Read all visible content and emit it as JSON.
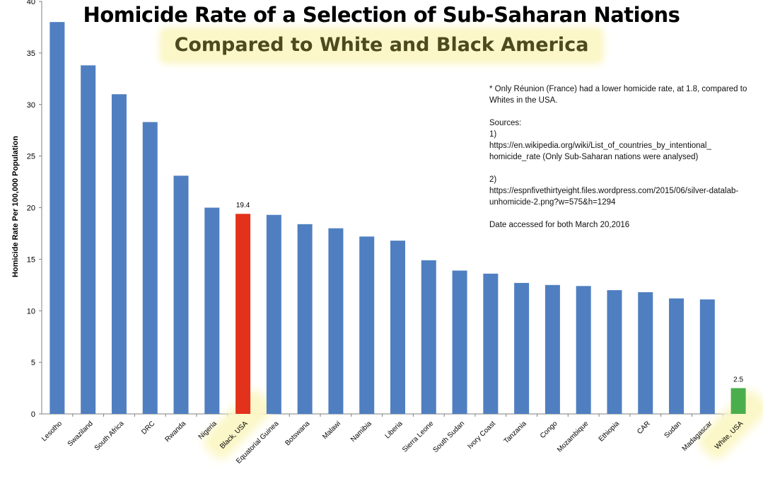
{
  "chart_data": {
    "type": "bar",
    "title": "Homicide Rate of a Selection of Sub-Saharan Nations",
    "subtitle": "Compared to White and Black America",
    "xlabel": "",
    "ylabel": "Homicide Rate Per 100,000  Population",
    "ylim": [
      0,
      40
    ],
    "yticks": [
      0,
      5,
      10,
      15,
      20,
      25,
      30,
      35,
      40
    ],
    "categories": [
      "Lesotho",
      "Swaziland",
      "South Africa",
      "DRC",
      "Rwanda",
      "Nigeria",
      "Black, USA",
      "Equatorial Guinea",
      "Botswana",
      "Malawi",
      "Namibia",
      "Liberia",
      "Sierra Leone",
      "South Sudan",
      "Ivory Coast",
      "Tanzania",
      "Congo",
      "Mozambique",
      "Ethiopia",
      "CAR",
      "Sudan",
      "Madagascar",
      "White, USA"
    ],
    "values": [
      38.0,
      33.8,
      31.0,
      28.3,
      23.1,
      20.0,
      19.4,
      19.3,
      18.4,
      18.0,
      17.2,
      16.8,
      14.9,
      13.9,
      13.6,
      12.7,
      12.5,
      12.4,
      12.0,
      11.8,
      11.2,
      11.1,
      2.5
    ],
    "data_labels": {
      "Black, USA": "19.4",
      "White, USA": "2.5"
    },
    "highlighted": [
      "Black, USA",
      "White, USA"
    ],
    "colors": {
      "default_bar": "#4f7fc0",
      "black_usa_bar": "#e3321c",
      "white_usa_bar": "#4bae4c",
      "highlight": "#fbf7c8"
    },
    "grid": false,
    "legend": "none"
  },
  "notes": {
    "footnote": "* Only Réunion (France) had a lower homicide rate, at 1.8, compared to Whites in the USA.",
    "sources_heading": "Sources:",
    "source1_number": "1)",
    "source1_text": "https://en.wikipedia.org/wiki/List_of_countries_by_intentional_ homicide_rate    (Only Sub-Saharan nations were analysed)",
    "source2_number": "2)",
    "source2_text": "https://espnfivethirtyeight.files.wordpress.com/2015/06/silver-datalab-unhomicide-2.png?w=575&h=1294",
    "date_accessed": "Date accessed for both March 20,2016"
  }
}
